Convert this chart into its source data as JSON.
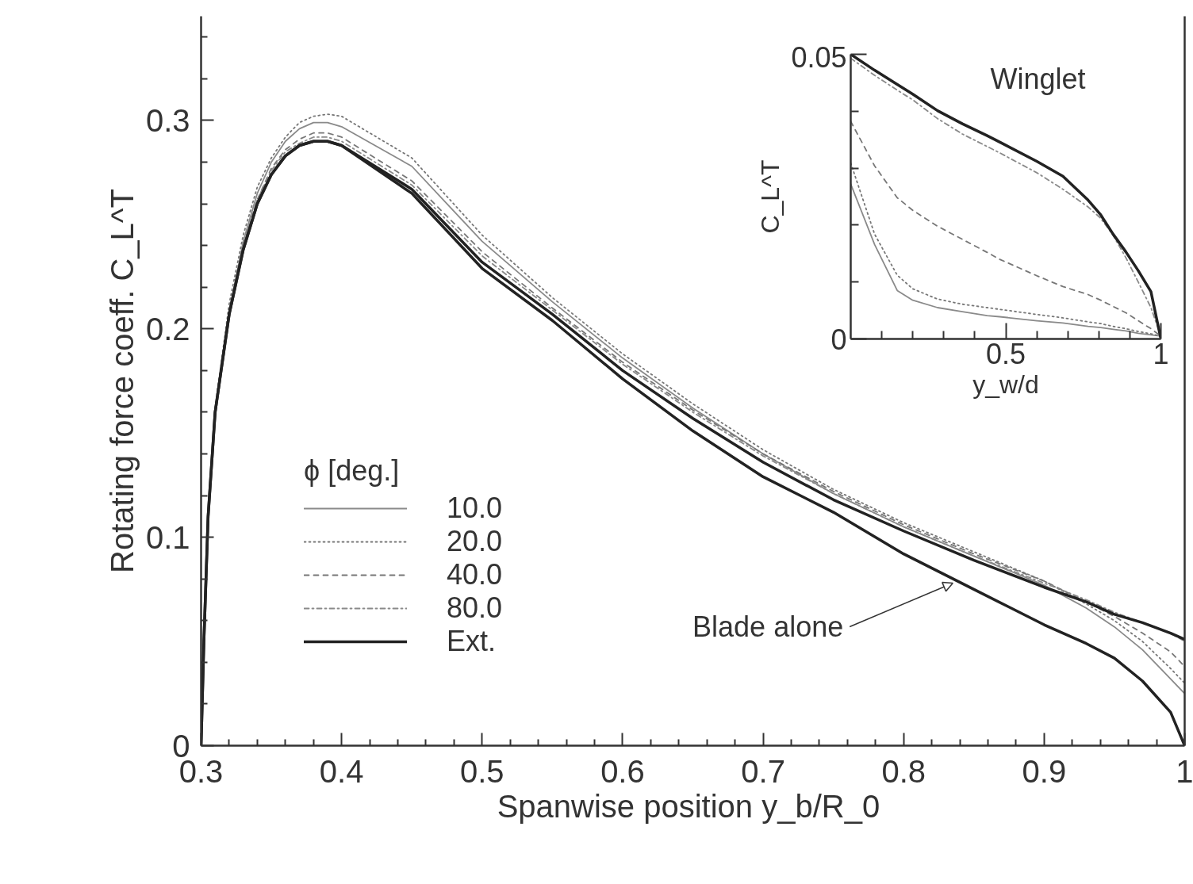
{
  "chart_data": [
    {
      "type": "line",
      "xlabel": "Spanwise position  y_b/R_0",
      "ylabel": "Rotating force coeff. C_L^T",
      "xlim": [
        0.3,
        1
      ],
      "ylim": [
        0,
        0.35
      ],
      "xticks": [
        0.3,
        {
          "value": 0.32,
          "label": null
        },
        {
          "value": 0.34,
          "label": null
        },
        {
          "value": 0.36,
          "label": null
        },
        {
          "value": 0.38,
          "label": null
        },
        0.4,
        {
          "value": 0.42,
          "label": null
        },
        {
          "value": 0.44,
          "label": null
        },
        {
          "value": 0.46,
          "label": null
        },
        {
          "value": 0.48,
          "label": null
        },
        0.5,
        {
          "value": 0.52,
          "label": null
        },
        {
          "value": 0.54,
          "label": null
        },
        {
          "value": 0.56,
          "label": null
        },
        {
          "value": 0.58,
          "label": null
        },
        0.6,
        {
          "value": 0.62,
          "label": null
        },
        {
          "value": 0.64,
          "label": null
        },
        {
          "value": 0.66,
          "label": null
        },
        {
          "value": 0.68,
          "label": null
        },
        0.7,
        {
          "value": 0.72,
          "label": null
        },
        {
          "value": 0.74,
          "label": null
        },
        {
          "value": 0.76,
          "label": null
        },
        {
          "value": 0.78,
          "label": null
        },
        0.8,
        {
          "value": 0.82,
          "label": null
        },
        {
          "value": 0.84,
          "label": null
        },
        {
          "value": 0.86,
          "label": null
        },
        {
          "value": 0.88,
          "label": null
        },
        0.9,
        {
          "value": 0.92,
          "label": null
        },
        {
          "value": 0.94,
          "label": null
        },
        {
          "value": 0.96,
          "label": null
        },
        {
          "value": 0.98,
          "label": null
        },
        1
      ],
      "yticks": [
        0,
        {
          "value": 0.02,
          "label": null
        },
        {
          "value": 0.04,
          "label": null
        },
        {
          "value": 0.06,
          "label": null
        },
        {
          "value": 0.08,
          "label": null
        },
        0.1,
        {
          "value": 0.12,
          "label": null
        },
        {
          "value": 0.14,
          "label": null
        },
        {
          "value": 0.16,
          "label": null
        },
        {
          "value": 0.18,
          "label": null
        },
        0.2,
        {
          "value": 0.22,
          "label": null
        },
        {
          "value": 0.24,
          "label": null
        },
        {
          "value": 0.26,
          "label": null
        },
        {
          "value": 0.28,
          "label": null
        },
        0.3,
        {
          "value": 0.32,
          "label": null
        },
        {
          "value": 0.34,
          "label": null
        }
      ],
      "legend": "bottom left",
      "legend_title": "ϕ [deg.]",
      "x": [
        0.3,
        0.302,
        0.305,
        0.31,
        0.32,
        0.33,
        0.34,
        0.35,
        0.36,
        0.37,
        0.38,
        0.39,
        0.4,
        0.45,
        0.5,
        0.55,
        0.6,
        0.65,
        0.7,
        0.75,
        0.8,
        0.85,
        0.9,
        0.93,
        0.95,
        0.97,
        0.99,
        1.0
      ],
      "series": [
        {
          "name": "10.0",
          "color": "#8a8a8a",
          "line_style": "solid",
          "values": [
            0,
            0.05,
            0.11,
            0.16,
            0.208,
            0.242,
            0.265,
            0.28,
            0.29,
            0.296,
            0.299,
            0.299,
            0.297,
            0.278,
            0.242,
            0.213,
            0.186,
            0.162,
            0.14,
            0.121,
            0.105,
            0.091,
            0.077,
            0.066,
            0.057,
            0.046,
            0.032,
            0.025
          ]
        },
        {
          "name": "20.0",
          "color": "#777777",
          "line_style": "dotted",
          "values": [
            0,
            0.05,
            0.11,
            0.162,
            0.212,
            0.245,
            0.268,
            0.282,
            0.292,
            0.299,
            0.302,
            0.303,
            0.302,
            0.282,
            0.245,
            0.215,
            0.188,
            0.164,
            0.142,
            0.123,
            0.107,
            0.093,
            0.079,
            0.068,
            0.06,
            0.05,
            0.037,
            0.03
          ]
        },
        {
          "name": "40.0",
          "color": "#777777",
          "line_style": "dashed",
          "values": [
            0,
            0.05,
            0.11,
            0.16,
            0.208,
            0.24,
            0.262,
            0.277,
            0.286,
            0.291,
            0.294,
            0.294,
            0.292,
            0.271,
            0.237,
            0.21,
            0.184,
            0.161,
            0.14,
            0.122,
            0.106,
            0.092,
            0.079,
            0.069,
            0.062,
            0.054,
            0.045,
            0.038
          ]
        },
        {
          "name": "80.0",
          "color": "#8a8a8a",
          "line_style": "dashdot",
          "values": [
            0,
            0.05,
            0.11,
            0.16,
            0.208,
            0.24,
            0.262,
            0.276,
            0.285,
            0.289,
            0.292,
            0.292,
            0.29,
            0.269,
            0.235,
            0.209,
            0.183,
            0.16,
            0.139,
            0.121,
            0.105,
            0.091,
            0.078,
            0.07,
            0.064,
            0.059,
            0.054,
            0.05
          ]
        },
        {
          "name": "Ext.",
          "color": "#222222",
          "line_style": "solid",
          "values": [
            0,
            0.05,
            0.11,
            0.16,
            0.207,
            0.238,
            0.26,
            0.274,
            0.283,
            0.288,
            0.29,
            0.29,
            0.288,
            0.267,
            0.232,
            0.207,
            0.18,
            0.157,
            0.136,
            0.118,
            0.103,
            0.089,
            0.076,
            0.069,
            0.063,
            0.059,
            0.054,
            0.051
          ]
        },
        {
          "color": "#222222",
          "line_style": "solid",
          "values": [
            0,
            0.05,
            0.11,
            0.16,
            0.207,
            0.238,
            0.26,
            0.274,
            0.283,
            0.288,
            0.29,
            0.29,
            0.288,
            0.265,
            0.229,
            0.204,
            0.176,
            0.151,
            0.129,
            0.112,
            0.092,
            0.075,
            0.058,
            0.049,
            0.042,
            0.031,
            0.016,
            0
          ]
        }
      ],
      "annotations": [
        {
          "text": "Blade alone",
          "x": 0.835,
          "y": 0.078
        }
      ]
    },
    {
      "type": "line",
      "title": "Winglet",
      "xlabel": "y_w/d",
      "ylabel": "C_L^T",
      "xlim": [
        0,
        1
      ],
      "ylim": [
        0,
        0.05
      ],
      "xticks": [
        {
          "value": 0.1,
          "label": null
        },
        {
          "value": 0.2,
          "label": null
        },
        {
          "value": 0.3,
          "label": null
        },
        {
          "value": 0.4,
          "label": null
        },
        0.5,
        {
          "value": 0.6,
          "label": null
        },
        {
          "value": 0.7,
          "label": null
        },
        {
          "value": 0.8,
          "label": null
        },
        {
          "value": 0.9,
          "label": null
        },
        1
      ],
      "yticks": [
        0,
        {
          "value": 0.01,
          "label": null
        },
        {
          "value": 0.02,
          "label": null
        },
        {
          "value": 0.03,
          "label": null
        },
        {
          "value": 0.04,
          "label": null
        },
        0.05
      ],
      "x": [
        0,
        0.077,
        0.15,
        0.2,
        0.28,
        0.36,
        0.44,
        0.48,
        0.6,
        0.684,
        0.765,
        0.806,
        0.846,
        0.887,
        0.927,
        0.968,
        1
      ],
      "series": [
        {
          "color": "#8a8a8a",
          "line_style": "solid",
          "values": [
            0.0272,
            0.0166,
            0.0085,
            0.0068,
            0.0055,
            0.0048,
            0.0041,
            0.0039,
            0.0032,
            0.0028,
            0.0022,
            0.002,
            0.0017,
            0.0014,
            0.001,
            0.0007,
            0.0005
          ]
        },
        {
          "color": "#777777",
          "line_style": "dotted",
          "values": [
            0.0309,
            0.0184,
            0.0112,
            0.0088,
            0.007,
            0.0061,
            0.0055,
            0.0052,
            0.0043,
            0.0037,
            0.003,
            0.0027,
            0.0022,
            0.0018,
            0.0013,
            0.0009,
            0.0005
          ]
        },
        {
          "color": "#777777",
          "line_style": "dashed",
          "values": [
            0.0382,
            0.0304,
            0.0248,
            0.0226,
            0.0198,
            0.0175,
            0.0152,
            0.014,
            0.0111,
            0.0092,
            0.0078,
            0.0068,
            0.0057,
            0.0046,
            0.0032,
            0.0018,
            0.0005
          ]
        },
        {
          "color": "#8a8a8a",
          "line_style": "dashdot",
          "values": [
            0.0493,
            0.0463,
            0.0437,
            0.042,
            0.0387,
            0.036,
            0.0338,
            0.0327,
            0.0292,
            0.0263,
            0.0232,
            0.0212,
            0.0182,
            0.0143,
            0.01,
            0.0055,
            0.0005
          ]
        },
        {
          "color": "#222222",
          "line_style": "solid",
          "values": [
            0.05,
            0.0472,
            0.0447,
            0.043,
            0.0401,
            0.0378,
            0.0357,
            0.0346,
            0.0312,
            0.0286,
            0.0244,
            0.0218,
            0.0184,
            0.0153,
            0.012,
            0.0083,
            0
          ]
        }
      ]
    }
  ]
}
